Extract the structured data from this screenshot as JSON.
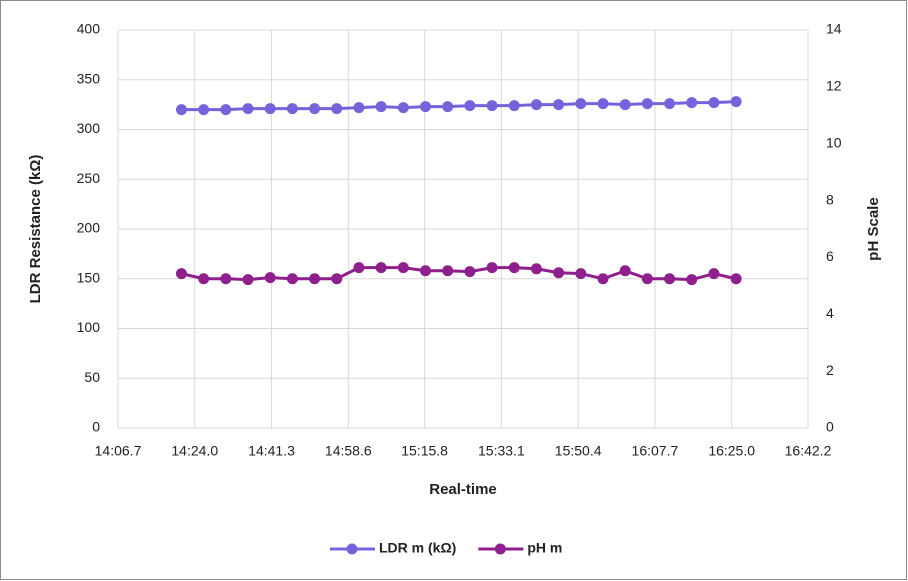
{
  "chart_data": {
    "type": "line",
    "xlabel": "Real-time",
    "ylabel": "LDR Resistance (kΩ)",
    "y2label": "pH Scale",
    "x": [
      861.0,
      866.0,
      871.0,
      876.0,
      881.0,
      886.0,
      891.0,
      896.0,
      901.0,
      906.0,
      911.0,
      916.0,
      921.0,
      926.0,
      931.0,
      936.0,
      941.0,
      946.0,
      951.0,
      956.0,
      961.0,
      966.0,
      971.0,
      976.0,
      981.0,
      986.0
    ],
    "series": [
      {
        "name": "LDR m (kΩ)",
        "color": "#7563dc",
        "values": [
          320,
          320,
          320,
          321,
          321,
          321,
          321,
          321,
          322,
          323,
          322,
          323,
          323,
          324,
          324,
          324,
          325,
          325,
          326,
          326,
          325,
          326,
          326,
          327,
          327,
          328
        ]
      },
      {
        "name": "pH m",
        "color": "#8e1f8c",
        "axis": "y2",
        "values": [
          5.43,
          5.25,
          5.25,
          5.22,
          5.29,
          5.25,
          5.25,
          5.25,
          5.64,
          5.64,
          5.64,
          5.53,
          5.53,
          5.5,
          5.64,
          5.64,
          5.6,
          5.46,
          5.43,
          5.25,
          5.53,
          5.25,
          5.25,
          5.22,
          5.43,
          5.25
        ]
      }
    ],
    "xlim": [
      846.7,
      1002.2
    ],
    "xticks": [
      {
        "value": 846.7,
        "label": "14:06.7"
      },
      {
        "value": 864.0,
        "label": "14:24.0"
      },
      {
        "value": 881.3,
        "label": "14:41.3"
      },
      {
        "value": 898.6,
        "label": "14:58.6"
      },
      {
        "value": 915.8,
        "label": "15:15.8"
      },
      {
        "value": 933.1,
        "label": "15:33.1"
      },
      {
        "value": 950.4,
        "label": "15:50.4"
      },
      {
        "value": 967.7,
        "label": "16:07.7"
      },
      {
        "value": 985.0,
        "label": "16:25.0"
      },
      {
        "value": 1002.2,
        "label": "16:42.2"
      }
    ],
    "ylim": [
      0,
      400
    ],
    "yticks": [
      0,
      50,
      100,
      150,
      200,
      250,
      300,
      350,
      400
    ],
    "y2lim": [
      0,
      14
    ],
    "y2ticks": [
      0,
      2,
      4,
      6,
      8,
      10,
      12,
      14
    ],
    "grid": true,
    "legend": "bottom"
  }
}
